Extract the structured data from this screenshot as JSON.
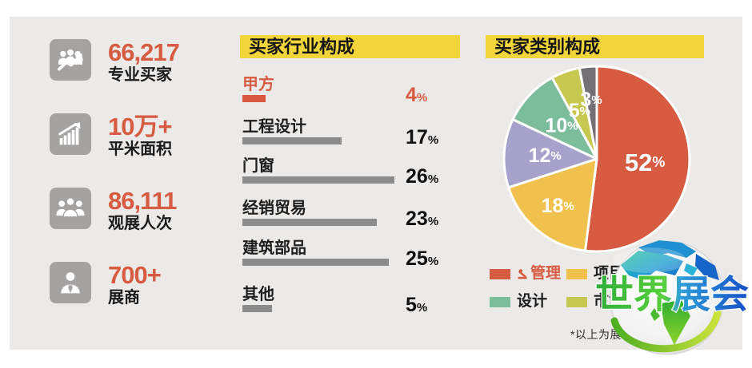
{
  "stats": [
    {
      "icon": "buyers-growth-icon",
      "value": "66,217",
      "label": "专业买家"
    },
    {
      "icon": "area-growth-icon",
      "value": "10万+",
      "label": "平米面积"
    },
    {
      "icon": "visitors-icon",
      "value": "86,111",
      "label": "观展人次"
    },
    {
      "icon": "exhibitor-icon",
      "value": "700+",
      "label": "展商"
    }
  ],
  "footnote": "*以上为展会",
  "watermark": {
    "text": "世界展会"
  },
  "theme": {
    "accent": "#D75B41",
    "title_bg": "#F2D43B",
    "panel_bg": "#ECEAE8",
    "bar_gray": "#8C8C8C",
    "icon_gray": "#A5A3A2"
  },
  "chart_data": [
    {
      "type": "bar",
      "title": "买家行业构成",
      "orientation": "horizontal",
      "unit": "%",
      "categories": [
        "甲方",
        "工程设计",
        "门窗",
        "经销贸易",
        "建筑部品",
        "其他"
      ],
      "values": [
        4,
        17,
        26,
        23,
        25,
        5
      ],
      "highlight_category": "甲方",
      "highlight_color": "#D75B41",
      "bar_color": "#8C8C8C",
      "value_labels": [
        "4%",
        "17%",
        "26%",
        "23%",
        "25%",
        "5%"
      ],
      "grid": false
    },
    {
      "type": "pie",
      "title": "买家类别构成",
      "unit": "%",
      "start_angle_clock": 0,
      "slice_border_color": "#FFFFFF",
      "slices": [
        {
          "label": "管理",
          "value": 52,
          "color": "#D75B41"
        },
        {
          "label": "项目工程",
          "value": 18,
          "color": "#F0C24D"
        },
        {
          "label": "",
          "value": 12,
          "color": "#A5A2CC"
        },
        {
          "label": "设计",
          "value": 10,
          "color": "#7CBD9C"
        },
        {
          "label": "市场",
          "value": 5,
          "color": "#C7C84F"
        },
        {
          "label": "",
          "value": 3,
          "color": "#737176"
        }
      ],
      "value_labels": [
        "52%",
        "18%",
        "12%",
        "10%",
        "5%",
        "3%"
      ],
      "legend_position": "bottom",
      "legend": [
        {
          "label": "管理",
          "color": "#D75B41",
          "highlighted": true
        },
        {
          "label": "项目工程",
          "color": "#F0C24D",
          "highlighted": false
        },
        {
          "label": "设计",
          "color": "#7CBD9C",
          "highlighted": false
        },
        {
          "label": "市场",
          "color": "#C7C84F",
          "highlighted": false
        }
      ]
    }
  ]
}
